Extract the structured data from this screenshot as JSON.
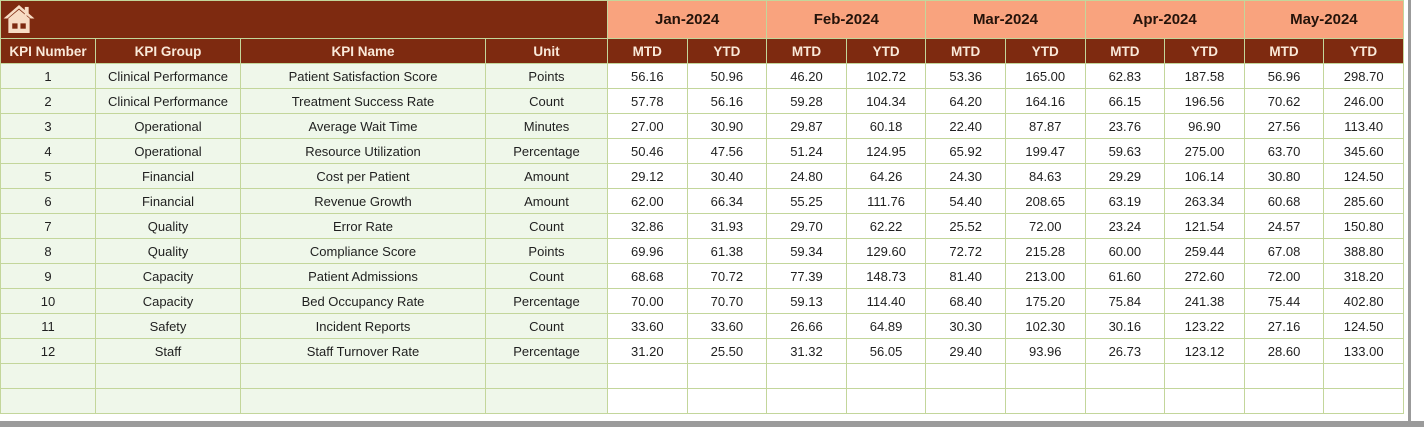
{
  "table": {
    "left_columns": [
      "KPI Number",
      "KPI Group",
      "KPI Name",
      "Unit"
    ],
    "months": [
      "Jan-2024",
      "Feb-2024",
      "Mar-2024",
      "Apr-2024",
      "May-2024"
    ],
    "sub_headers": [
      "MTD",
      "YTD"
    ],
    "rows": [
      {
        "kpi_number": "1",
        "kpi_group": "Clinical Performance",
        "kpi_name": "Patient Satisfaction Score",
        "unit": "Points",
        "values": [
          "56.16",
          "50.96",
          "46.20",
          "102.72",
          "53.36",
          "165.00",
          "62.83",
          "187.58",
          "56.96",
          "298.70"
        ]
      },
      {
        "kpi_number": "2",
        "kpi_group": "Clinical Performance",
        "kpi_name": "Treatment Success Rate",
        "unit": "Count",
        "values": [
          "57.78",
          "56.16",
          "59.28",
          "104.34",
          "64.20",
          "164.16",
          "66.15",
          "196.56",
          "70.62",
          "246.00"
        ]
      },
      {
        "kpi_number": "3",
        "kpi_group": "Operational",
        "kpi_name": "Average Wait Time",
        "unit": "Minutes",
        "values": [
          "27.00",
          "30.90",
          "29.87",
          "60.18",
          "22.40",
          "87.87",
          "23.76",
          "96.90",
          "27.56",
          "113.40"
        ]
      },
      {
        "kpi_number": "4",
        "kpi_group": "Operational",
        "kpi_name": "Resource Utilization",
        "unit": "Percentage",
        "values": [
          "50.46",
          "47.56",
          "51.24",
          "124.95",
          "65.92",
          "199.47",
          "59.63",
          "275.00",
          "63.70",
          "345.60"
        ]
      },
      {
        "kpi_number": "5",
        "kpi_group": "Financial",
        "kpi_name": "Cost per Patient",
        "unit": "Amount",
        "values": [
          "29.12",
          "30.40",
          "24.80",
          "64.26",
          "24.30",
          "84.63",
          "29.29",
          "106.14",
          "30.80",
          "124.50"
        ]
      },
      {
        "kpi_number": "6",
        "kpi_group": "Financial",
        "kpi_name": "Revenue Growth",
        "unit": "Amount",
        "values": [
          "62.00",
          "66.34",
          "55.25",
          "111.76",
          "54.40",
          "208.65",
          "63.19",
          "263.34",
          "60.68",
          "285.60"
        ]
      },
      {
        "kpi_number": "7",
        "kpi_group": "Quality",
        "kpi_name": "Error Rate",
        "unit": "Count",
        "values": [
          "32.86",
          "31.93",
          "29.70",
          "62.22",
          "25.52",
          "72.00",
          "23.24",
          "121.54",
          "24.57",
          "150.80"
        ]
      },
      {
        "kpi_number": "8",
        "kpi_group": "Quality",
        "kpi_name": "Compliance Score",
        "unit": "Points",
        "values": [
          "69.96",
          "61.38",
          "59.34",
          "129.60",
          "72.72",
          "215.28",
          "60.00",
          "259.44",
          "67.08",
          "388.80"
        ]
      },
      {
        "kpi_number": "9",
        "kpi_group": "Capacity",
        "kpi_name": "Patient Admissions",
        "unit": "Count",
        "values": [
          "68.68",
          "70.72",
          "77.39",
          "148.73",
          "81.40",
          "213.00",
          "61.60",
          "272.60",
          "72.00",
          "318.20"
        ]
      },
      {
        "kpi_number": "10",
        "kpi_group": "Capacity",
        "kpi_name": "Bed Occupancy Rate",
        "unit": "Percentage",
        "values": [
          "70.00",
          "70.70",
          "59.13",
          "114.40",
          "68.40",
          "175.20",
          "75.84",
          "241.38",
          "75.44",
          "402.80"
        ]
      },
      {
        "kpi_number": "11",
        "kpi_group": "Safety",
        "kpi_name": "Incident Reports",
        "unit": "Count",
        "values": [
          "33.60",
          "33.60",
          "26.66",
          "64.89",
          "30.30",
          "102.30",
          "30.16",
          "123.22",
          "27.16",
          "124.50"
        ]
      },
      {
        "kpi_number": "12",
        "kpi_group": "Staff",
        "kpi_name": "Staff Turnover Rate",
        "unit": "Percentage",
        "values": [
          "31.20",
          "25.50",
          "31.32",
          "56.05",
          "29.40",
          "93.96",
          "26.73",
          "123.12",
          "28.60",
          "133.00"
        ]
      }
    ],
    "empty_row_count": 2
  },
  "icons": {
    "home": "home-icon"
  },
  "colors": {
    "maroon": "#7E2A10",
    "salmon": "#F9A37E",
    "cream": "#FAE9D9",
    "month_text": "#24130A",
    "row_green": "#EFF7EA",
    "grid": "#C3D69B",
    "cell_text": "#1F1F1F",
    "edge_gray": "#9B9B9B",
    "icon_cream": "#F7DCC4"
  }
}
